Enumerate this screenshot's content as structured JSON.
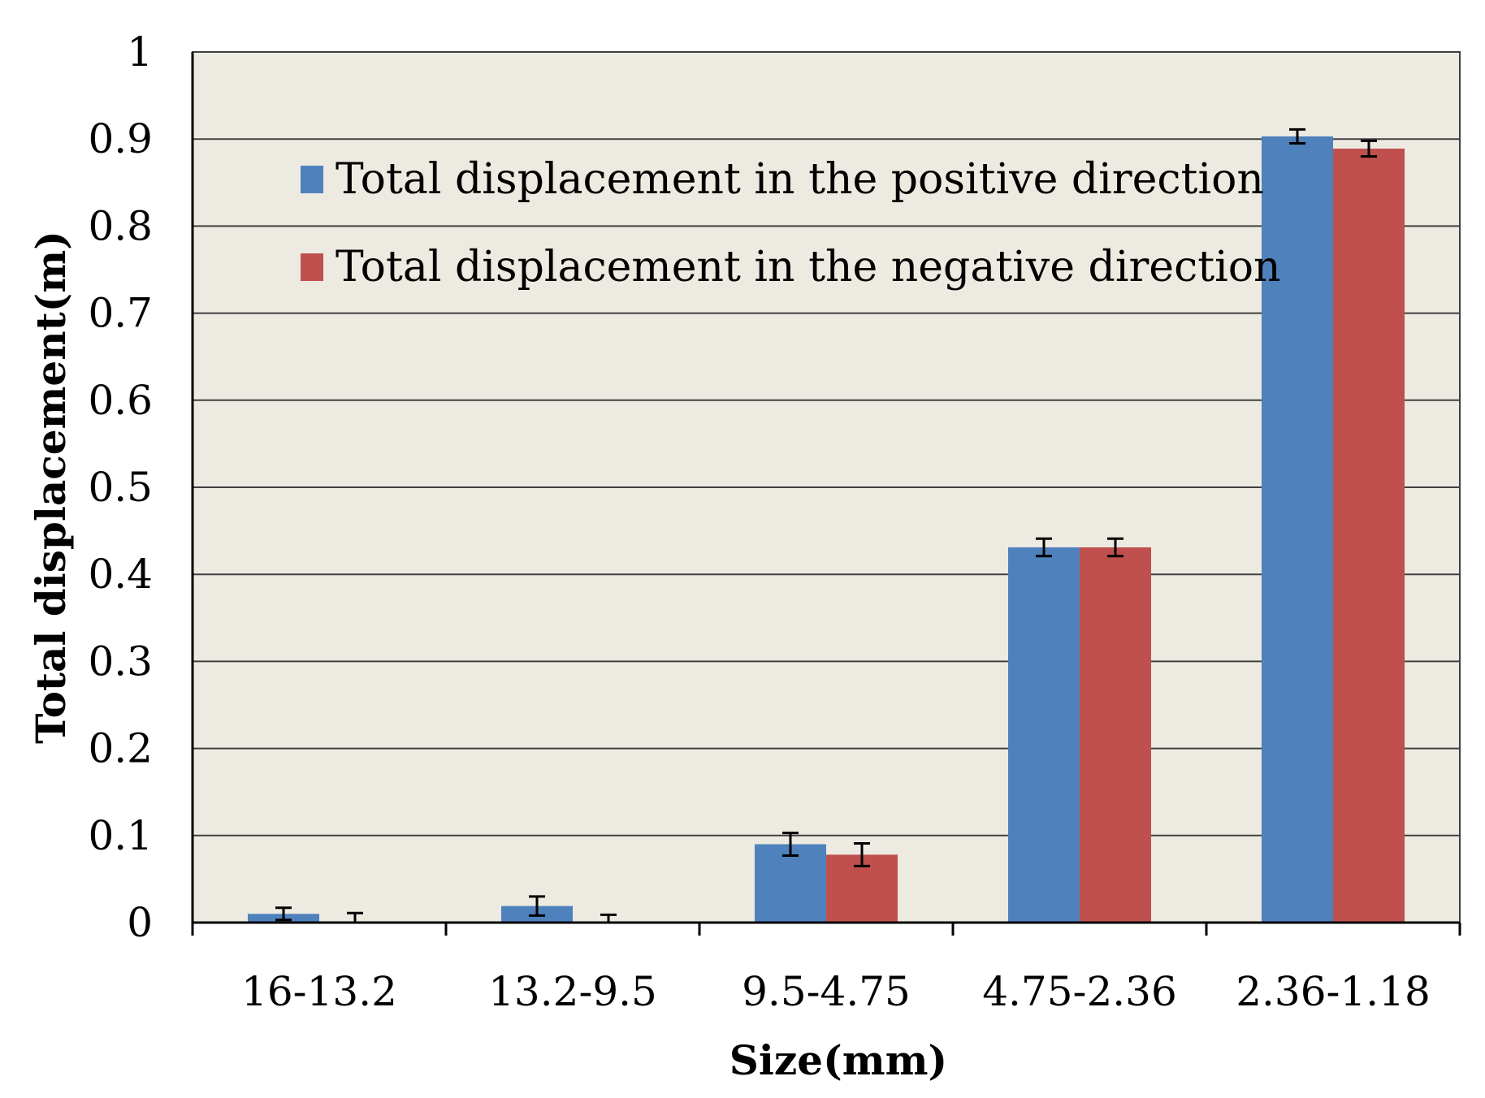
{
  "chart_data": {
    "type": "bar",
    "title": "",
    "xlabel": "Size(mm)",
    "ylabel": "Total displacement(m)",
    "ylim": [
      0,
      1
    ],
    "yticks": [
      "0",
      "0.1",
      "0.2",
      "0.3",
      "0.4",
      "0.5",
      "0.6",
      "0.7",
      "0.8",
      "0.9",
      "1"
    ],
    "grid": true,
    "legend_position": "top-left",
    "categories": [
      "16-13.2",
      "13.2-9.5",
      "9.5-4.75",
      "4.75-2.36",
      "2.36-1.18"
    ],
    "series": [
      {
        "name": "Total displacement in the positive direction",
        "color": "#4F81BD",
        "values": [
          0.01,
          0.019,
          0.09,
          0.431,
          0.903
        ],
        "errors": [
          0.007,
          0.011,
          0.013,
          0.01,
          0.008
        ]
      },
      {
        "name": "Total displacement in the negative direction",
        "color": "#C0504D",
        "values": [
          0.0,
          0.0,
          0.078,
          0.431,
          0.889
        ],
        "errors": [
          0.011,
          0.009,
          0.013,
          0.01,
          0.009
        ]
      }
    ],
    "plot_background": "#EDEAE1",
    "grid_color": "#404040"
  }
}
